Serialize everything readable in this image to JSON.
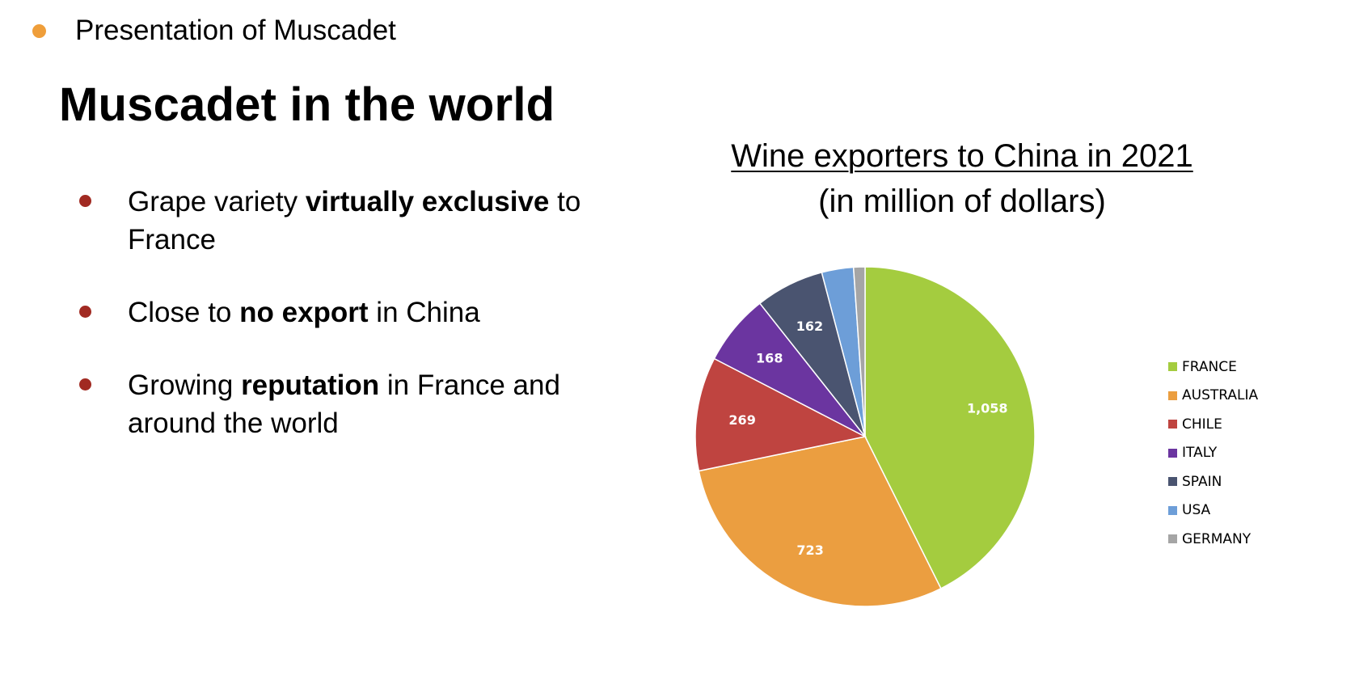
{
  "header": {
    "section": "Presentation of Muscadet",
    "title": "Muscadet in the world"
  },
  "bullets": [
    [
      {
        "text": "Grape variety ",
        "bold": false
      },
      {
        "text": "virtually exclusive",
        "bold": true
      },
      {
        "text": " to France",
        "bold": false
      }
    ],
    [
      {
        "text": "Close to ",
        "bold": false
      },
      {
        "text": "no export",
        "bold": true
      },
      {
        "text": " in China",
        "bold": false
      }
    ],
    [
      {
        "text": "Growing ",
        "bold": false
      },
      {
        "text": "reputation",
        "bold": true
      },
      {
        "text": " in France and around the world",
        "bold": false
      }
    ]
  ],
  "colors": {
    "section_dot": "#ef9e3a",
    "bullet_dot": "#a12a22"
  },
  "chart_data": {
    "type": "pie",
    "title": "Wine exporters to China in 2021",
    "subtitle": "(in million of dollars)",
    "legend_position": "right",
    "slices": [
      {
        "name": "FRANCE",
        "value": 1058,
        "label": "1,058",
        "color": "#a4cc3f"
      },
      {
        "name": "AUSTRALIA",
        "value": 723,
        "label": "723",
        "color": "#eb9e40"
      },
      {
        "name": "CHILE",
        "value": 269,
        "label": "269",
        "color": "#bf4440"
      },
      {
        "name": "ITALY",
        "value": 168,
        "label": "168",
        "color": "#6b35a0"
      },
      {
        "name": "SPAIN",
        "value": 162,
        "label": "162",
        "color": "#4a5470"
      },
      {
        "name": "USA",
        "value": 75,
        "label": "",
        "color": "#6d9ed8"
      },
      {
        "name": "GERMANY",
        "value": 27,
        "label": "",
        "color": "#a5a5a5"
      }
    ]
  }
}
